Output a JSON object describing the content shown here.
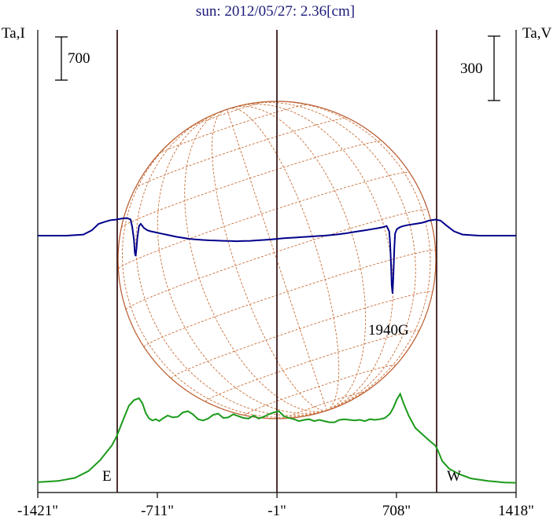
{
  "chart_data": {
    "type": "line",
    "title": "sun: 2012/05/27: 2.36[cm]",
    "ylabel_left": "Ta,I",
    "ylabel_right": "Ta,V",
    "scale_left": "700",
    "scale_right": "300",
    "x_ticks": [
      "-1421\"",
      "-711\"",
      "-1\"",
      "708\"",
      "1418\""
    ],
    "xlim": [
      -1421,
      1418
    ],
    "limb_markers": [
      {
        "label": "E",
        "x": -953
      },
      {
        "label": "W",
        "x": 953
      }
    ],
    "annotation": "1940G",
    "series": [
      {
        "color": "#1a9a1a",
        "x": [
          -1421,
          -1300,
          -1200,
          -1120,
          -1050,
          -980,
          -953,
          -920,
          -880,
          -850,
          -820,
          -800,
          -780,
          -760,
          -740,
          -720,
          -700,
          -680,
          -650,
          -620,
          -590,
          -560,
          -530,
          -500,
          -470,
          -440,
          -410,
          -380,
          -350,
          -320,
          -290,
          -260,
          -230,
          -200,
          -170,
          -140,
          -110,
          -80,
          -50,
          -20,
          10,
          40,
          70,
          100,
          130,
          160,
          190,
          220,
          250,
          280,
          310,
          340,
          370,
          400,
          430,
          460,
          490,
          520,
          550,
          580,
          610,
          640,
          670,
          690,
          710,
          730,
          750,
          780,
          820,
          860,
          900,
          940,
          953,
          980,
          1020,
          1080,
          1150,
          1250,
          1350,
          1418
        ],
        "y": [
          40,
          60,
          110,
          220,
          400,
          640,
          780,
          1010,
          1280,
          1370,
          1400,
          1320,
          1160,
          1070,
          1040,
          1060,
          1030,
          1070,
          1120,
          1090,
          1100,
          1170,
          1190,
          1140,
          1060,
          1040,
          1070,
          1130,
          1150,
          1080,
          1090,
          1140,
          1110,
          1080,
          1070,
          1120,
          1070,
          1100,
          1140,
          1170,
          1190,
          1110,
          1080,
          1060,
          1030,
          1050,
          1060,
          1030,
          1050,
          1030,
          1010,
          1010,
          1050,
          1060,
          1050,
          1040,
          1050,
          1030,
          1060,
          1050,
          1060,
          1080,
          1150,
          1250,
          1380,
          1470,
          1320,
          1120,
          920,
          820,
          720,
          630,
          560,
          380,
          260,
          170,
          100,
          60,
          35,
          30
        ]
      },
      {
        "color": "#00008b",
        "x": [
          -1421,
          -1250,
          -1150,
          -1100,
          -1060,
          -1020,
          -990,
          -953,
          -920,
          -890,
          -870,
          -860,
          -850,
          -845,
          -840,
          -835,
          -830,
          -820,
          -810,
          -790,
          -770,
          -750,
          -720,
          -690,
          -660,
          -630,
          -600,
          -560,
          -520,
          -480,
          -440,
          -400,
          -360,
          -320,
          -280,
          -240,
          -200,
          -160,
          -120,
          -80,
          -40,
          -1,
          40,
          80,
          120,
          160,
          200,
          240,
          280,
          320,
          360,
          400,
          440,
          480,
          520,
          560,
          600,
          630,
          650,
          665,
          670,
          675,
          680,
          685,
          690,
          695,
          700,
          710,
          720,
          730,
          750,
          780,
          820,
          860,
          900,
          940,
          970,
          1000,
          1050,
          1100,
          1200,
          1300,
          1418
        ],
        "y": [
          0,
          0,
          5,
          25,
          55,
          65,
          72,
          75,
          80,
          82,
          75,
          40,
          -20,
          -80,
          -95,
          -60,
          -10,
          45,
          55,
          35,
          25,
          20,
          15,
          10,
          5,
          0,
          -5,
          -10,
          -15,
          -18,
          -20,
          -22,
          -23,
          -24,
          -25,
          -26,
          -25,
          -24,
          -22,
          -20,
          -18,
          -15,
          -12,
          -10,
          -8,
          -6,
          -4,
          -2,
          0,
          3,
          6,
          10,
          15,
          20,
          25,
          30,
          35,
          40,
          45,
          20,
          -30,
          -120,
          -230,
          -270,
          -180,
          -60,
          10,
          30,
          35,
          40,
          45,
          50,
          55,
          60,
          70,
          75,
          70,
          50,
          20,
          5,
          0,
          0,
          0
        ]
      }
    ]
  }
}
